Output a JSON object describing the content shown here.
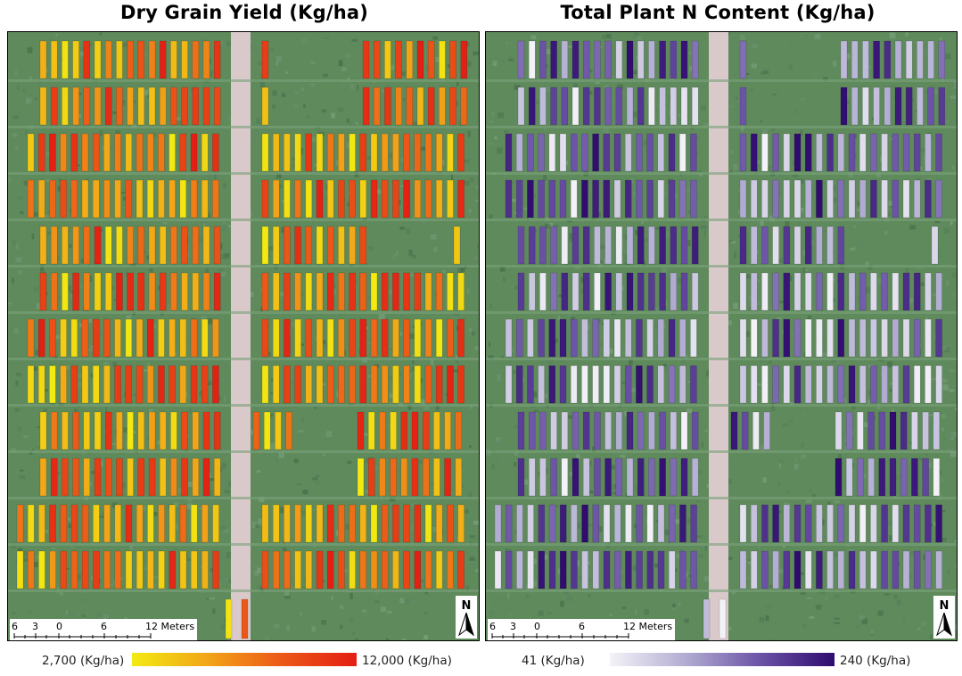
{
  "panels": [
    {
      "title": "Dry Grain Yield (Kg/ha)",
      "scale": {
        "labels": [
          "6",
          "3",
          "0",
          "6",
          "12 Meters"
        ]
      },
      "north": "N",
      "legend": {
        "min_label": "2,700 (Kg/ha)",
        "max_label": "12,000 (Kg/ha)",
        "min_value": 2700,
        "max_value": 12000,
        "unit": "Kg/ha",
        "colors": [
          "#f3ea12",
          "#f2a618",
          "#ec5a18",
          "#e41e14"
        ]
      }
    },
    {
      "title": "Total Plant N Content (Kg/ha)",
      "scale": {
        "labels": [
          "6",
          "3",
          "0",
          "6",
          "12 Meters"
        ]
      },
      "north": "N",
      "legend": {
        "min_label": "41 (Kg/ha)",
        "max_label": "240 (Kg/ha)",
        "min_value": 41,
        "max_value": 240,
        "unit": "Kg/ha",
        "colors": [
          "#f4f3f8",
          "#b3aed3",
          "#6d55a8",
          "#2f0b6e"
        ]
      }
    }
  ],
  "colors": {
    "background_field": "#5f8a5c",
    "road": "#d8c8c8",
    "panel_border": "#000000"
  }
}
